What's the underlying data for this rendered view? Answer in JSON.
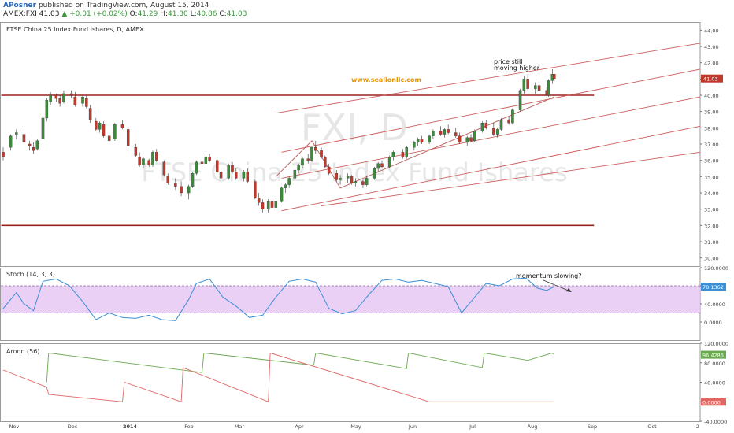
{
  "header": {
    "author": "APosner",
    "published": "published on TradingView.com, August 15, 2014",
    "symbol": "AMEX:FXI",
    "last": "41.03",
    "change": "▲ +0.01 (+0.02%)",
    "o_label": "O:",
    "o_value": "41.29",
    "h_label": "H:",
    "h_value": "41.30",
    "l_label": "L:",
    "l_value": "40.86",
    "c_label": "C:",
    "c_value": "41.03"
  },
  "main": {
    "title": "FTSE China 25 Index Fund Ishares, D, AMEX",
    "watermark_symbol": "FXI, D",
    "watermark_name": "FTSE China 25 Index Fund Ishares",
    "website": "www.sealionllc.com",
    "note_line1": "price still",
    "note_line2": "moving higher",
    "last_price_label": "41.03",
    "y_ticks": [
      "44.00",
      "43.00",
      "42.00",
      "41.00",
      "40.00",
      "39.00",
      "38.00",
      "37.00",
      "36.00",
      "35.00",
      "34.00",
      "33.00",
      "32.00",
      "31.00",
      "30.00"
    ]
  },
  "stoch": {
    "title": "Stoch (14, 3, 3)",
    "note": "momentum slowing?",
    "value_label": "78.1362",
    "y_ticks": [
      "120.0000",
      "80.0000",
      "40.0000",
      "0.0000"
    ]
  },
  "aroon": {
    "title": "Aroon (56)",
    "up_label": "96.4286",
    "down_label": "0.0000",
    "y_ticks": [
      "120.0000",
      "80.0000",
      "40.0000",
      "0.0000",
      "-40.0000"
    ]
  },
  "x_ticks": [
    "Nov",
    "Dec",
    "2014",
    "Feb",
    "Mar",
    "Apr",
    "May",
    "Jun",
    "Jul",
    "Aug",
    "Sep",
    "Oct",
    "2"
  ],
  "colors": {
    "up": "#3b8b3b",
    "down": "#c0392b",
    "channel": "#cc5b5b",
    "level": "#9b2020",
    "stoch": "#3a8fd6",
    "band_fill": "#e8c8f5",
    "aroon_up": "#6aa84f",
    "aroon_down": "#e06666",
    "website": "#e69500"
  },
  "chart_data": {
    "type": "candlestick",
    "title": "FTSE China 25 Index Fund Ishares, D, AMEX",
    "ylim": [
      29.5,
      44.5
    ],
    "x_range": [
      "2013-10-28",
      "2014-10-31"
    ],
    "candles": [
      [
        "2013-10-28",
        36.5,
        36.8,
        36.0,
        36.2
      ],
      [
        "2013-11-01",
        36.8,
        37.6,
        36.6,
        37.5
      ],
      [
        "2013-11-04",
        37.6,
        37.9,
        37.3,
        37.7
      ],
      [
        "2013-11-08",
        37.6,
        37.8,
        37.0,
        37.1
      ],
      [
        "2013-11-11",
        37.0,
        37.2,
        36.6,
        36.9
      ],
      [
        "2013-11-13",
        36.8,
        37.1,
        36.4,
        36.6
      ],
      [
        "2013-11-15",
        36.7,
        37.3,
        36.6,
        37.2
      ],
      [
        "2013-11-18",
        37.3,
        38.7,
        37.2,
        38.6
      ],
      [
        "2013-11-20",
        38.6,
        39.8,
        38.4,
        39.7
      ],
      [
        "2013-11-22",
        39.6,
        40.2,
        39.4,
        40.0
      ],
      [
        "2013-11-25",
        40.0,
        40.1,
        39.6,
        39.8
      ],
      [
        "2013-11-27",
        39.8,
        40.0,
        39.3,
        39.5
      ],
      [
        "2013-11-29",
        39.6,
        40.3,
        39.5,
        40.1
      ],
      [
        "2013-12-03",
        40.1,
        40.3,
        39.8,
        40.0
      ],
      [
        "2013-12-05",
        39.9,
        40.2,
        39.3,
        39.4
      ],
      [
        "2013-12-09",
        39.5,
        40.0,
        39.3,
        39.9
      ],
      [
        "2013-12-11",
        39.8,
        40.0,
        39.2,
        39.3
      ],
      [
        "2013-12-13",
        39.2,
        39.4,
        38.3,
        38.5
      ],
      [
        "2013-12-16",
        38.4,
        38.6,
        37.8,
        37.9
      ],
      [
        "2013-12-18",
        37.9,
        38.4,
        37.7,
        38.3
      ],
      [
        "2013-12-20",
        38.2,
        38.4,
        37.4,
        37.5
      ],
      [
        "2013-12-23",
        37.5,
        37.7,
        37.0,
        37.2
      ],
      [
        "2013-12-26",
        37.3,
        38.3,
        37.2,
        38.2
      ],
      [
        "2013-12-30",
        38.2,
        38.5,
        37.9,
        38.0
      ],
      [
        "2014-01-02",
        37.9,
        38.0,
        36.8,
        36.9
      ],
      [
        "2014-01-06",
        36.8,
        37.0,
        36.2,
        36.3
      ],
      [
        "2014-01-08",
        36.2,
        36.5,
        35.6,
        35.7
      ],
      [
        "2014-01-10",
        35.7,
        36.2,
        35.5,
        36.1
      ],
      [
        "2014-01-13",
        36.0,
        36.1,
        35.6,
        35.7
      ],
      [
        "2014-01-15",
        35.7,
        36.6,
        35.6,
        36.5
      ],
      [
        "2014-01-17",
        36.5,
        36.7,
        35.9,
        36.0
      ],
      [
        "2014-01-21",
        35.9,
        36.0,
        35.0,
        35.1
      ],
      [
        "2014-01-23",
        35.0,
        35.2,
        34.5,
        34.6
      ],
      [
        "2014-01-27",
        34.6,
        34.9,
        34.2,
        34.4
      ],
      [
        "2014-01-30",
        34.4,
        34.7,
        33.8,
        34.0
      ],
      [
        "2014-02-03",
        34.0,
        34.5,
        33.6,
        34.4
      ],
      [
        "2014-02-05",
        34.4,
        35.3,
        34.3,
        35.2
      ],
      [
        "2014-02-07",
        35.2,
        36.0,
        35.1,
        35.9
      ],
      [
        "2014-02-10",
        35.9,
        36.2,
        35.6,
        35.8
      ],
      [
        "2014-02-12",
        35.8,
        36.3,
        35.7,
        36.2
      ],
      [
        "2014-02-14",
        36.2,
        36.4,
        35.9,
        36.0
      ],
      [
        "2014-02-18",
        36.0,
        36.1,
        35.2,
        35.3
      ],
      [
        "2014-02-20",
        35.3,
        35.5,
        34.8,
        34.9
      ],
      [
        "2014-02-24",
        34.9,
        35.8,
        34.8,
        35.7
      ],
      [
        "2014-02-26",
        35.7,
        35.9,
        35.2,
        35.3
      ],
      [
        "2014-02-28",
        35.3,
        35.5,
        34.8,
        34.9
      ],
      [
        "2014-03-04",
        34.9,
        35.4,
        34.7,
        35.3
      ],
      [
        "2014-03-06",
        35.3,
        35.5,
        34.6,
        34.7
      ],
      [
        "2014-03-10",
        34.7,
        34.8,
        33.6,
        33.7
      ],
      [
        "2014-03-12",
        33.7,
        34.0,
        33.2,
        33.4
      ],
      [
        "2014-03-14",
        33.4,
        33.6,
        32.8,
        33.0
      ],
      [
        "2014-03-17",
        33.0,
        33.6,
        32.8,
        33.5
      ],
      [
        "2014-03-19",
        33.5,
        33.8,
        33.0,
        33.1
      ],
      [
        "2014-03-21",
        33.1,
        33.6,
        32.9,
        33.5
      ],
      [
        "2014-03-24",
        33.5,
        34.4,
        33.4,
        34.3
      ],
      [
        "2014-03-26",
        34.3,
        34.6,
        34.0,
        34.5
      ],
      [
        "2014-03-28",
        34.5,
        35.0,
        34.3,
        34.9
      ],
      [
        "2014-03-31",
        34.9,
        35.5,
        34.8,
        35.4
      ],
      [
        "2014-04-02",
        35.4,
        35.8,
        35.2,
        35.7
      ],
      [
        "2014-04-04",
        35.7,
        36.2,
        35.5,
        36.1
      ],
      [
        "2014-04-07",
        36.1,
        36.4,
        35.8,
        36.0
      ],
      [
        "2014-04-09",
        36.0,
        36.9,
        35.9,
        36.8
      ],
      [
        "2014-04-11",
        36.8,
        37.2,
        36.4,
        36.6
      ],
      [
        "2014-04-14",
        36.6,
        36.8,
        36.1,
        36.2
      ],
      [
        "2014-04-16",
        36.2,
        36.3,
        35.5,
        35.6
      ],
      [
        "2014-04-18",
        35.6,
        35.8,
        35.1,
        35.2
      ],
      [
        "2014-04-22",
        35.2,
        35.4,
        34.7,
        34.8
      ],
      [
        "2014-04-24",
        34.8,
        35.1,
        34.5,
        34.9
      ],
      [
        "2014-04-28",
        34.9,
        35.2,
        34.6,
        35.0
      ],
      [
        "2014-04-30",
        35.0,
        35.1,
        34.5,
        34.6
      ],
      [
        "2014-05-02",
        34.6,
        34.9,
        34.4,
        34.7
      ],
      [
        "2014-05-06",
        34.7,
        34.8,
        34.3,
        34.5
      ],
      [
        "2014-05-08",
        34.5,
        35.0,
        34.4,
        34.9
      ],
      [
        "2014-05-12",
        34.9,
        35.6,
        34.8,
        35.5
      ],
      [
        "2014-05-14",
        35.5,
        35.9,
        35.3,
        35.8
      ],
      [
        "2014-05-16",
        35.8,
        36.0,
        35.5,
        35.6
      ],
      [
        "2014-05-20",
        35.6,
        36.3,
        35.5,
        36.2
      ],
      [
        "2014-05-22",
        36.2,
        36.6,
        36.0,
        36.5
      ],
      [
        "2014-05-27",
        36.5,
        36.7,
        36.1,
        36.2
      ],
      [
        "2014-05-29",
        36.2,
        36.9,
        36.1,
        36.8
      ],
      [
        "2014-06-02",
        36.8,
        37.2,
        36.6,
        37.1
      ],
      [
        "2014-06-04",
        37.1,
        37.4,
        36.9,
        37.3
      ],
      [
        "2014-06-06",
        37.3,
        37.5,
        37.0,
        37.1
      ],
      [
        "2014-06-10",
        37.1,
        37.6,
        37.0,
        37.5
      ],
      [
        "2014-06-12",
        37.5,
        37.9,
        37.3,
        37.8
      ],
      [
        "2014-06-16",
        37.8,
        38.1,
        37.5,
        37.6
      ],
      [
        "2014-06-18",
        37.6,
        38.0,
        37.4,
        37.9
      ],
      [
        "2014-06-20",
        37.9,
        38.2,
        37.6,
        37.7
      ],
      [
        "2014-06-24",
        37.7,
        38.0,
        37.4,
        37.5
      ],
      [
        "2014-06-26",
        37.5,
        37.7,
        37.0,
        37.1
      ],
      [
        "2014-06-30",
        37.1,
        37.5,
        36.9,
        37.4
      ],
      [
        "2014-07-02",
        37.4,
        37.6,
        37.1,
        37.2
      ],
      [
        "2014-07-04",
        37.2,
        37.9,
        37.1,
        37.8
      ],
      [
        "2014-07-08",
        37.8,
        38.4,
        37.7,
        38.3
      ],
      [
        "2014-07-10",
        38.3,
        38.5,
        37.9,
        38.0
      ],
      [
        "2014-07-14",
        38.0,
        38.3,
        37.5,
        37.6
      ],
      [
        "2014-07-16",
        37.6,
        38.0,
        37.4,
        37.9
      ],
      [
        "2014-07-18",
        37.9,
        38.6,
        37.8,
        38.5
      ],
      [
        "2014-07-22",
        38.5,
        38.7,
        38.2,
        38.3
      ],
      [
        "2014-07-24",
        38.3,
        39.2,
        38.2,
        39.1
      ],
      [
        "2014-07-28",
        39.1,
        40.4,
        39.0,
        40.3
      ],
      [
        "2014-07-30",
        40.3,
        41.2,
        40.1,
        41.0
      ],
      [
        "2014-08-01",
        41.0,
        41.3,
        40.3,
        40.4
      ],
      [
        "2014-08-05",
        40.4,
        40.8,
        40.1,
        40.6
      ],
      [
        "2014-08-07",
        40.6,
        40.9,
        40.2,
        40.3
      ],
      [
        "2014-08-11",
        40.3,
        40.5,
        39.8,
        40.0
      ],
      [
        "2014-08-12",
        40.0,
        41.0,
        39.9,
        40.9
      ],
      [
        "2014-08-14",
        40.9,
        41.6,
        40.7,
        41.3
      ],
      [
        "2014-08-15",
        41.29,
        41.3,
        40.86,
        41.03
      ]
    ],
    "stoch": {
      "ylim": [
        -40,
        120
      ],
      "band": [
        20,
        80
      ],
      "k": [
        [
          "2013-10-28",
          30
        ],
        [
          "2013-11-04",
          65
        ],
        [
          "2013-11-08",
          40
        ],
        [
          "2013-11-13",
          25
        ],
        [
          "2013-11-18",
          90
        ],
        [
          "2013-11-25",
          95
        ],
        [
          "2013-12-02",
          80
        ],
        [
          "2013-12-09",
          45
        ],
        [
          "2013-12-16",
          5
        ],
        [
          "2013-12-23",
          20
        ],
        [
          "2013-12-30",
          10
        ],
        [
          "2014-01-06",
          8
        ],
        [
          "2014-01-13",
          15
        ],
        [
          "2014-01-20",
          5
        ],
        [
          "2014-01-27",
          3
        ],
        [
          "2014-02-03",
          50
        ],
        [
          "2014-02-07",
          85
        ],
        [
          "2014-02-14",
          95
        ],
        [
          "2014-02-21",
          55
        ],
        [
          "2014-02-28",
          35
        ],
        [
          "2014-03-07",
          10
        ],
        [
          "2014-03-14",
          15
        ],
        [
          "2014-03-21",
          55
        ],
        [
          "2014-03-28",
          90
        ],
        [
          "2014-04-04",
          95
        ],
        [
          "2014-04-11",
          88
        ],
        [
          "2014-04-18",
          30
        ],
        [
          "2014-04-25",
          18
        ],
        [
          "2014-05-02",
          25
        ],
        [
          "2014-05-09",
          60
        ],
        [
          "2014-05-16",
          92
        ],
        [
          "2014-05-23",
          95
        ],
        [
          "2014-05-30",
          88
        ],
        [
          "2014-06-06",
          92
        ],
        [
          "2014-06-13",
          85
        ],
        [
          "2014-06-20",
          78
        ],
        [
          "2014-06-27",
          20
        ],
        [
          "2014-07-03",
          50
        ],
        [
          "2014-07-10",
          85
        ],
        [
          "2014-07-17",
          80
        ],
        [
          "2014-07-24",
          95
        ],
        [
          "2014-07-31",
          97
        ],
        [
          "2014-08-06",
          75
        ],
        [
          "2014-08-11",
          70
        ],
        [
          "2014-08-15",
          78.1362
        ]
      ]
    },
    "aroon": {
      "ylim": [
        -40,
        120
      ],
      "up": [
        [
          "2013-11-20",
          40
        ],
        [
          "2013-11-21",
          100
        ],
        [
          "2014-02-10",
          60
        ],
        [
          "2014-02-11",
          100
        ],
        [
          "2014-04-10",
          75
        ],
        [
          "2014-04-11",
          100
        ],
        [
          "2014-05-29",
          68
        ],
        [
          "2014-05-30",
          100
        ],
        [
          "2014-07-08",
          70
        ],
        [
          "2014-07-09",
          100
        ],
        [
          "2014-08-01",
          85
        ],
        [
          "2014-08-14",
          100
        ],
        [
          "2014-08-15",
          96.4286
        ]
      ],
      "down": [
        [
          "2013-10-28",
          65
        ],
        [
          "2013-11-20",
          30
        ],
        [
          "2013-11-21",
          15
        ],
        [
          "2013-12-30",
          0
        ],
        [
          "2013-12-31",
          40
        ],
        [
          "2014-01-30",
          0
        ],
        [
          "2014-01-31",
          70
        ],
        [
          "2014-03-17",
          0
        ],
        [
          "2014-03-18",
          100
        ],
        [
          "2014-06-10",
          0
        ],
        [
          "2014-06-11",
          0
        ],
        [
          "2014-08-15",
          0
        ]
      ]
    },
    "trendlines": [
      {
        "role": "level",
        "points": [
          [
            "2013-10-27",
            40.0
          ],
          [
            "2014-09-05",
            40.0
          ]
        ]
      },
      {
        "role": "level",
        "points": [
          [
            "2013-10-27",
            32.0
          ],
          [
            "2014-09-05",
            32.0
          ]
        ]
      },
      {
        "role": "channel",
        "points": [
          [
            "2014-03-21",
            38.9
          ],
          [
            "2014-10-31",
            43.2
          ]
        ]
      },
      {
        "role": "channel",
        "points": [
          [
            "2014-03-24",
            36.5
          ],
          [
            "2014-10-31",
            41.6
          ]
        ]
      },
      {
        "role": "channel",
        "points": [
          [
            "2014-03-24",
            34.9
          ],
          [
            "2014-10-31",
            39.9
          ]
        ]
      },
      {
        "role": "channel",
        "points": [
          [
            "2014-03-24",
            32.9
          ],
          [
            "2014-10-31",
            38.1
          ]
        ]
      },
      {
        "role": "channel",
        "points": [
          [
            "2014-04-14",
            33.2
          ],
          [
            "2014-10-31",
            36.5
          ]
        ]
      },
      {
        "role": "pattern",
        "points": [
          [
            "2014-03-21",
            35.0
          ],
          [
            "2014-04-09",
            37.2
          ],
          [
            "2014-04-24",
            34.3
          ],
          [
            "2014-08-15",
            39.9
          ]
        ]
      }
    ]
  }
}
